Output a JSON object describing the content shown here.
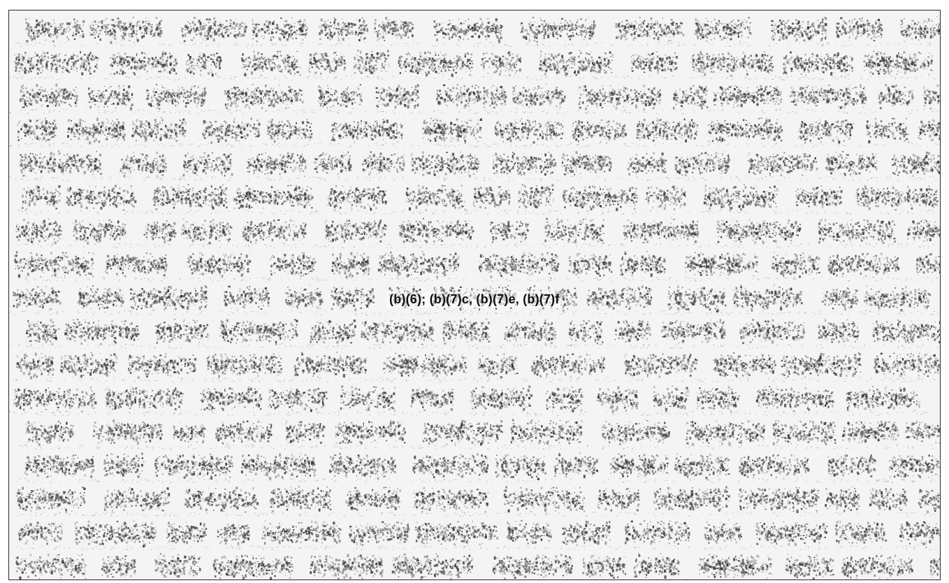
{
  "redaction": {
    "codes": "(b)(6); (b)(7)c, (b)(7)e, (b)(7)f"
  },
  "colors": {
    "ink": "#111111",
    "noise_dark": "#3a3a3a",
    "noise_mid": "#8a8a8a",
    "background": "#f4f4f4"
  }
}
